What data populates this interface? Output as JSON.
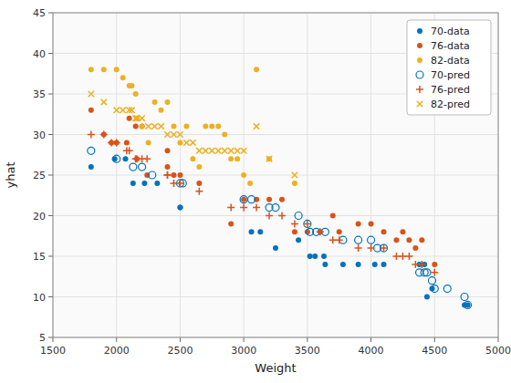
{
  "chart_data": {
    "type": "scatter",
    "xlabel": "Weight",
    "ylabel": "yhat",
    "xlim": [
      1500,
      5000
    ],
    "ylim": [
      5,
      45
    ],
    "xticks": [
      1500,
      2000,
      2500,
      3000,
      3500,
      4000,
      4500,
      5000
    ],
    "yticks": [
      5,
      10,
      15,
      20,
      25,
      30,
      35,
      40,
      45
    ],
    "grid": true,
    "legend": "upper-right",
    "series": [
      {
        "name": "70-data",
        "color": "#0072BD",
        "marker": "circle",
        "x": [
          1800,
          1985,
          2070,
          2130,
          2220,
          2320,
          2500,
          2500,
          3060,
          3130,
          3250,
          3430,
          3520,
          3560,
          3630,
          3640,
          3780,
          3900,
          4030,
          4100,
          4380,
          4420,
          4440,
          4480,
          4735,
          4760
        ],
        "values": [
          26,
          27,
          27,
          24,
          24,
          24,
          21,
          21,
          18,
          18,
          16,
          17,
          15,
          15,
          15,
          14,
          14,
          14,
          14,
          14,
          14,
          14,
          10,
          11,
          9,
          9
        ]
      },
      {
        "name": "76-data",
        "color": "#D95319",
        "marker": "circle",
        "x": [
          1800,
          1900,
          1960,
          2000,
          2080,
          2100,
          2150,
          2160,
          2200,
          2240,
          2400,
          2400,
          2450,
          2500,
          2650,
          2900,
          3000,
          3100,
          3200,
          3300,
          3400,
          3500,
          3600,
          3700,
          3750,
          3900,
          4000,
          4100,
          4200,
          4250,
          4300,
          4350,
          4400,
          4500
        ],
        "values": [
          33,
          30,
          29,
          29,
          29,
          32,
          31,
          27,
          31,
          25,
          28,
          26,
          25,
          25,
          24,
          19,
          22,
          22,
          22,
          22,
          18,
          18,
          18,
          20,
          18,
          19,
          19,
          18,
          17,
          18,
          17,
          16,
          17,
          14
        ]
      },
      {
        "name": "82-data",
        "color": "#EDB120",
        "marker": "circle",
        "x": [
          1800,
          1900,
          2000,
          2050,
          2100,
          2120,
          2150,
          2160,
          2200,
          2250,
          2300,
          2350,
          2400,
          2450,
          2500,
          2550,
          2600,
          2650,
          2700,
          2750,
          2800,
          2850,
          2900,
          2950,
          3000,
          3050,
          3100,
          3200,
          3400
        ],
        "values": [
          38,
          38,
          38,
          37,
          36,
          36,
          35,
          32,
          31,
          29,
          34,
          33,
          34,
          31,
          29,
          31,
          27,
          26,
          31,
          31,
          31,
          30,
          27,
          27,
          25,
          24,
          38,
          27,
          24
        ]
      },
      {
        "name": "70-pred",
        "color": "#0072BD",
        "marker": "open-circle",
        "x": [
          1800,
          2000,
          2130,
          2200,
          2280,
          2500,
          2520,
          3000,
          3060,
          3200,
          3250,
          3430,
          3500,
          3520,
          3570,
          3640,
          3780,
          3900,
          4000,
          4050,
          4100,
          4380,
          4420,
          4440,
          4480,
          4500,
          4600,
          4735,
          4760
        ],
        "values": [
          28,
          27,
          26,
          26,
          25,
          24,
          24,
          22,
          22,
          21,
          21,
          20,
          19,
          18,
          18,
          18,
          17,
          17,
          17,
          16,
          16,
          13,
          13,
          13,
          12,
          11,
          11,
          10,
          9
        ]
      },
      {
        "name": "76-pred",
        "color": "#D95319",
        "marker": "plus",
        "x": [
          1800,
          1900,
          1960,
          2000,
          2080,
          2100,
          2150,
          2160,
          2200,
          2240,
          2400,
          2400,
          2450,
          2500,
          2650,
          2900,
          3000,
          3100,
          3200,
          3300,
          3400,
          3500,
          3600,
          3700,
          3750,
          3900,
          4000,
          4100,
          4200,
          4250,
          4300,
          4350,
          4400,
          4500
        ],
        "values": [
          30,
          30,
          29,
          29,
          28,
          28,
          27,
          27,
          27,
          27,
          25,
          25,
          24,
          24,
          23,
          21,
          21,
          21,
          20,
          20,
          19,
          19,
          18,
          17,
          17,
          16,
          16,
          16,
          15,
          15,
          15,
          14,
          14,
          13
        ]
      },
      {
        "name": "82-pred",
        "color": "#EDB120",
        "marker": "cross",
        "x": [
          1800,
          1900,
          2000,
          2050,
          2100,
          2120,
          2150,
          2160,
          2200,
          2250,
          2300,
          2350,
          2400,
          2450,
          2500,
          2550,
          2600,
          2650,
          2700,
          2750,
          2800,
          2850,
          2900,
          2950,
          3000,
          3100,
          3200,
          3400
        ],
        "values": [
          35,
          34,
          33,
          33,
          33,
          33,
          32,
          32,
          32,
          31,
          31,
          31,
          30,
          30,
          30,
          29,
          29,
          28,
          28,
          28,
          28,
          28,
          28,
          28,
          28,
          31,
          27,
          25
        ]
      }
    ]
  }
}
